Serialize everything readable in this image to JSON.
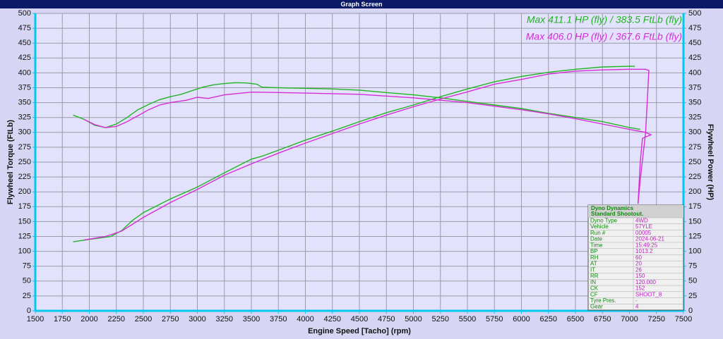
{
  "window_title": "Graph Screen",
  "chart_data": {
    "type": "line",
    "annotations": [
      {
        "text": "Max 411.1 HP (fly) / 383.5 FtLb (fly)",
        "color": "#22b422"
      },
      {
        "text": "Max 406.0 HP (fly) / 367.6 FtLb (fly)",
        "color": "#d62ed6"
      }
    ],
    "x_label": "Engine Speed [Tacho] (rpm)",
    "y_label": "Flywheel Torque (FtLb)",
    "y2_label": "Flywheel Power (HP)",
    "xlim": [
      1500,
      7500
    ],
    "xticks": [
      1500,
      1750,
      2000,
      2250,
      2500,
      2750,
      3000,
      3250,
      3500,
      3750,
      4000,
      4250,
      4500,
      4750,
      5000,
      5250,
      5500,
      5750,
      6000,
      6250,
      6500,
      6750,
      7000,
      7250,
      7500
    ],
    "ylim": [
      0,
      500
    ],
    "yticks": [
      0,
      25,
      50,
      75,
      100,
      125,
      150,
      175,
      200,
      225,
      250,
      275,
      300,
      325,
      350,
      375,
      400,
      425,
      450,
      475,
      500
    ],
    "y2lim": [
      0,
      500
    ],
    "y2ticks": [
      0,
      25,
      50,
      75,
      100,
      125,
      150,
      175,
      200,
      225,
      250,
      275,
      300,
      325,
      350,
      375,
      400,
      425,
      450,
      475,
      500
    ],
    "grid": true,
    "series": [
      {
        "color": "#22b422",
        "x": [
          1850,
          1950,
          2050,
          2150,
          2250,
          2350,
          2450,
          2550,
          2650,
          2750,
          2850,
          2950,
          3050,
          3150,
          3250,
          3350,
          3450,
          3550,
          3600,
          3750,
          4000,
          4250,
          4500,
          4750,
          5000,
          5250,
          5500,
          5750,
          6000,
          6250,
          6500,
          6750,
          7000,
          7100
        ],
        "values": [
          329,
          322,
          312,
          308,
          314,
          325,
          338,
          347,
          355,
          360,
          364,
          370,
          376,
          380,
          382,
          383.5,
          383,
          381,
          376,
          375,
          374,
          373,
          371,
          367,
          363,
          358,
          352,
          346,
          340,
          332,
          325,
          318,
          308,
          305
        ]
      },
      {
        "color": "#22b422",
        "axis": "y2",
        "x": [
          1850,
          2000,
          2200,
          2300,
          2400,
          2500,
          2750,
          3000,
          3250,
          3500,
          3600,
          3750,
          4000,
          4250,
          4500,
          4750,
          5000,
          5250,
          5500,
          5750,
          6000,
          6250,
          6500,
          6750,
          7000,
          7050
        ],
        "values": [
          116,
          120,
          125,
          135,
          152,
          165,
          188,
          208,
          232,
          255,
          260,
          270,
          287,
          302,
          318,
          333,
          346,
          360,
          373,
          385,
          394,
          401,
          406,
          410,
          411.1,
          411
        ]
      },
      {
        "color": "#d62ed6",
        "x": [
          1950,
          2050,
          2150,
          2250,
          2350,
          2450,
          2550,
          2650,
          2750,
          2900,
          3000,
          3100,
          3250,
          3500,
          3750,
          4000,
          4250,
          4500,
          4750,
          5000,
          5250,
          5500,
          5750,
          6000,
          6250,
          6500,
          6750,
          7000,
          7150,
          7200,
          7120,
          7100,
          7080
        ],
        "values": [
          322,
          313,
          308,
          310,
          318,
          328,
          338,
          346,
          350,
          354,
          359,
          357,
          363,
          367.6,
          367,
          366,
          365,
          364,
          361,
          358,
          354,
          350,
          344,
          338,
          331,
          323,
          314,
          305,
          300,
          296,
          290,
          250,
          180
        ]
      },
      {
        "color": "#d62ed6",
        "axis": "y2",
        "x": [
          1950,
          2150,
          2300,
          2500,
          2750,
          3000,
          3250,
          3500,
          3750,
          4000,
          4250,
          4500,
          4750,
          5000,
          5250,
          5500,
          5750,
          6000,
          6250,
          6500,
          6750,
          7000,
          7150,
          7180,
          7150,
          7100,
          7080
        ],
        "values": [
          119,
          125,
          134,
          157,
          182,
          204,
          228,
          247,
          265,
          282,
          298,
          314,
          329,
          343,
          356,
          368,
          381,
          389,
          398,
          403,
          405,
          406,
          406,
          404,
          300,
          220,
          180
        ]
      }
    ],
    "info": {
      "title": [
        "Dyno Dynamics",
        "Standard Shootout."
      ],
      "rows": [
        [
          "Dyno Type",
          "4WD"
        ],
        [
          "Vehicle",
          "57YLE"
        ],
        [
          "Run #",
          "00005"
        ],
        [
          "Date",
          "2024-06-21"
        ],
        [
          "Time",
          "15:49:25"
        ],
        [
          "BP",
          "1013.2"
        ],
        [
          "RH",
          "60"
        ],
        [
          "AT",
          "20"
        ],
        [
          "IT",
          "26"
        ],
        [
          "RR",
          "150"
        ],
        [
          "IN",
          "120.000"
        ],
        [
          "CK",
          "152"
        ],
        [
          "CF",
          "SHOOT_8"
        ],
        [
          "Tyre Pres.",
          "-"
        ],
        [
          "Gear",
          "4"
        ]
      ]
    }
  }
}
